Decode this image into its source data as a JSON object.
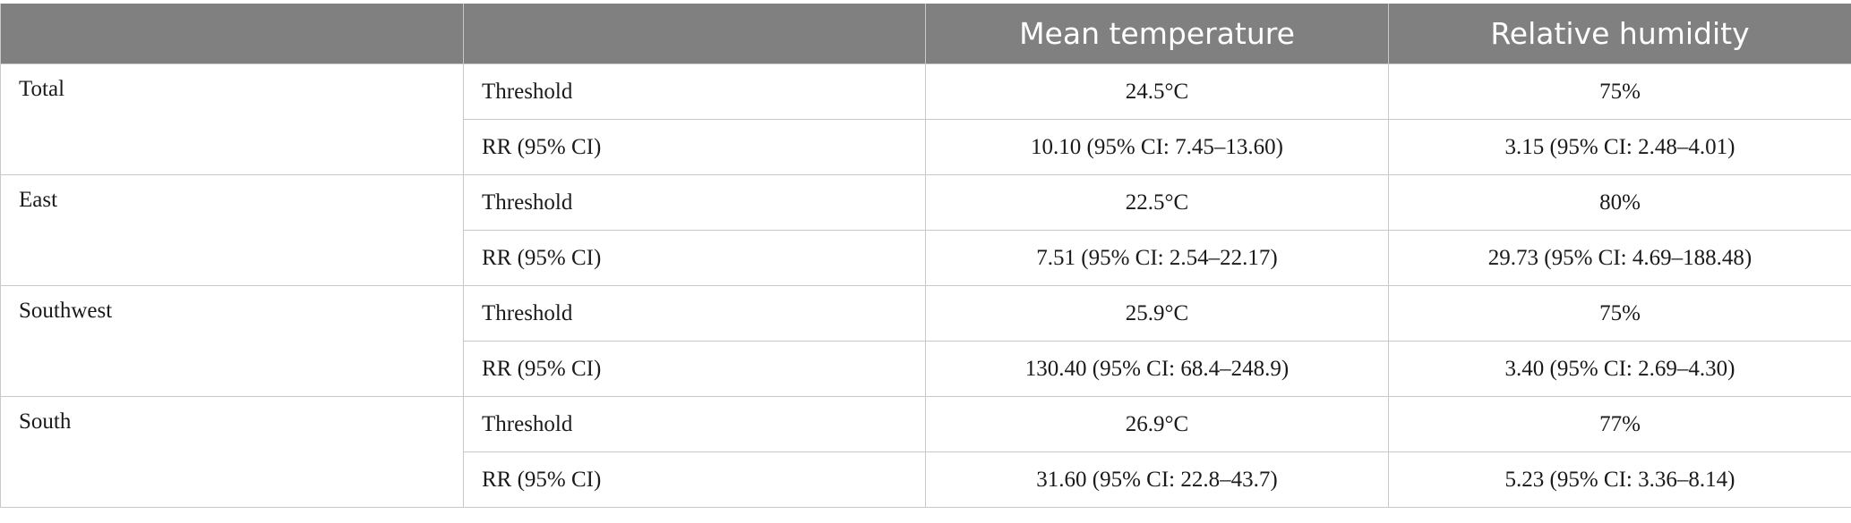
{
  "table": {
    "headers": [
      "",
      "",
      "Mean temperature",
      "Relative humidity"
    ],
    "groups": [
      {
        "region": "Total",
        "rows": [
          {
            "measure": "Threshold",
            "mean_temperature": "24.5°C",
            "relative_humidity": "75%"
          },
          {
            "measure": "RR (95% CI)",
            "mean_temperature": "10.10 (95% CI: 7.45–13.60)",
            "relative_humidity": "3.15 (95% CI: 2.48–4.01)"
          }
        ]
      },
      {
        "region": "East",
        "rows": [
          {
            "measure": "Threshold",
            "mean_temperature": "22.5°C",
            "relative_humidity": "80%"
          },
          {
            "measure": "RR (95% CI)",
            "mean_temperature": "7.51 (95% CI: 2.54–22.17)",
            "relative_humidity": "29.73 (95% CI: 4.69–188.48)"
          }
        ]
      },
      {
        "region": "Southwest",
        "rows": [
          {
            "measure": "Threshold",
            "mean_temperature": "25.9°C",
            "relative_humidity": "75%"
          },
          {
            "measure": "RR (95% CI)",
            "mean_temperature": "130.40 (95% CI: 68.4–248.9)",
            "relative_humidity": "3.40 (95% CI: 2.69–4.30)"
          }
        ]
      },
      {
        "region": "South",
        "rows": [
          {
            "measure": "Threshold",
            "mean_temperature": "26.9°C",
            "relative_humidity": "77%"
          },
          {
            "measure": "RR (95% CI)",
            "mean_temperature": "31.60 (95% CI: 22.8–43.7)",
            "relative_humidity": "5.23 (95% CI: 3.36–8.14)"
          }
        ]
      }
    ]
  },
  "colors": {
    "header_background": "#808080",
    "header_text": "#ffffff",
    "border": "#c8c8c8",
    "body_text": "#1a1a1a"
  }
}
